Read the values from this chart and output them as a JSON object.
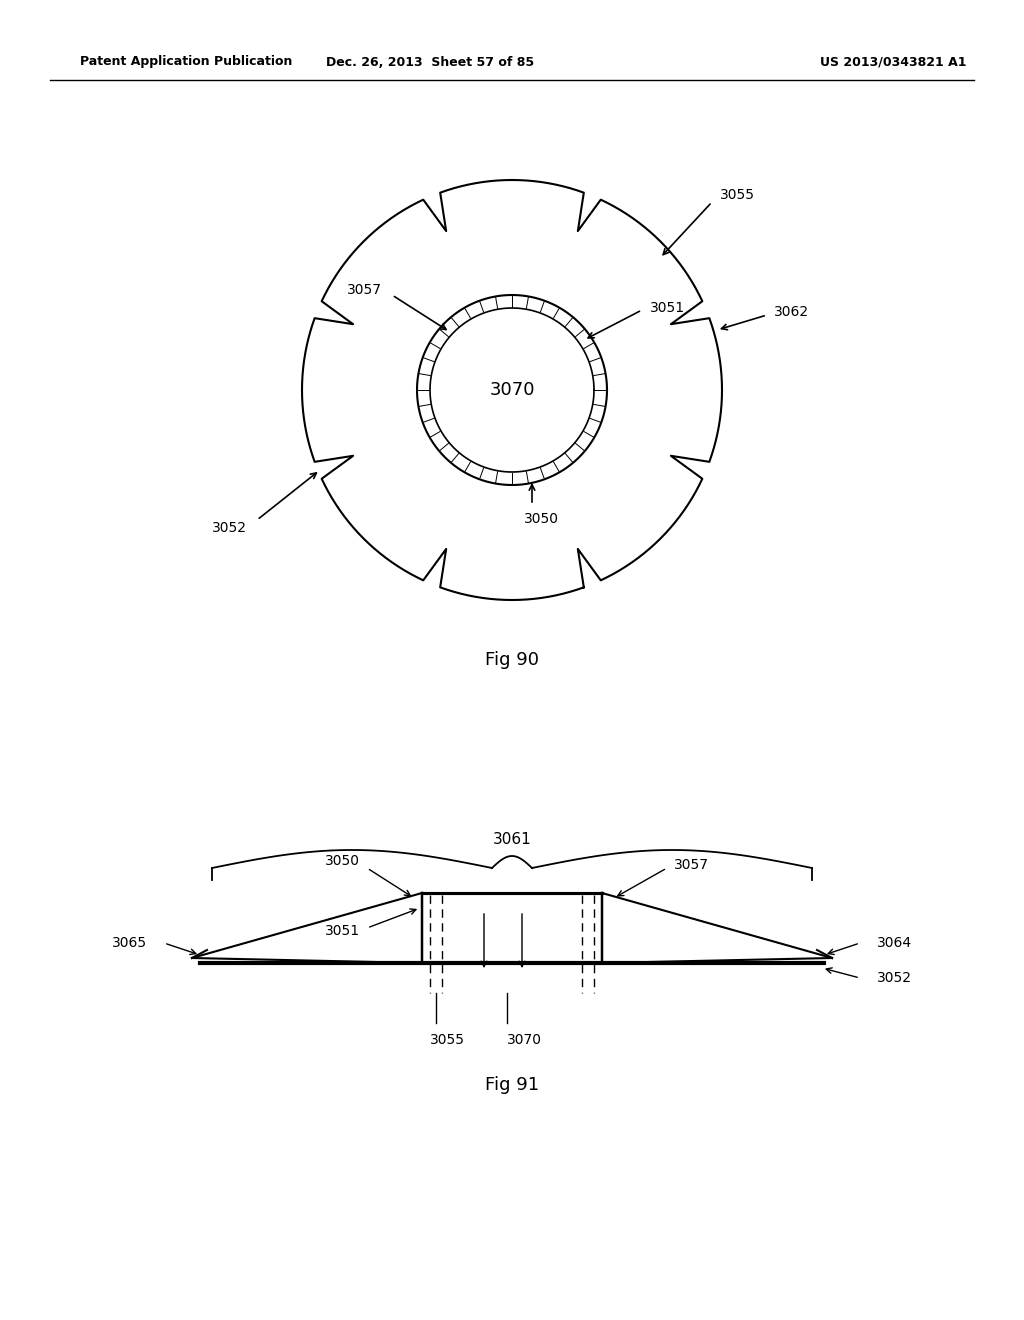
{
  "header_left": "Patent Application Publication",
  "header_mid": "Dec. 26, 2013  Sheet 57 of 85",
  "header_right": "US 2013/0343821 A1",
  "fig90_label": "Fig 90",
  "fig91_label": "Fig 91",
  "bg_color": "#ffffff",
  "line_color": "#000000"
}
